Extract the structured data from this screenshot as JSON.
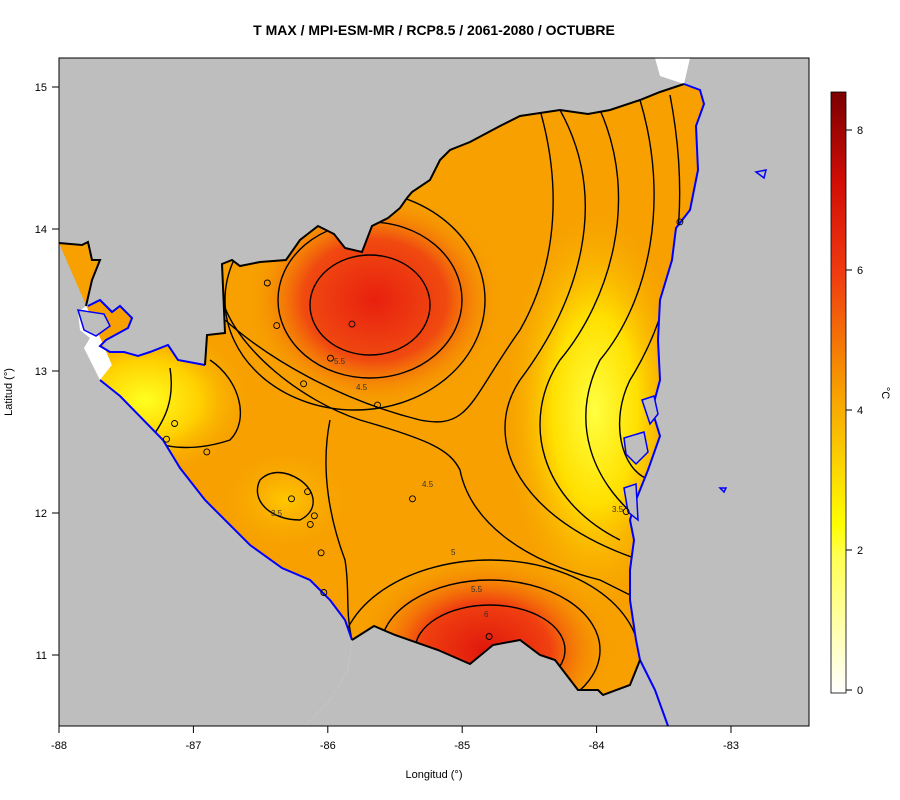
{
  "title": "T MAX / MPI-ESM-MR / RCP8.5 / 2061-2080 / OCTUBRE",
  "xlabel": "Longitud (°)",
  "ylabel": "Latitud (°)",
  "xticks": [
    "-88",
    "-87",
    "-86",
    "-85",
    "-84",
    "-83"
  ],
  "yticks": [
    "15",
    "14",
    "13",
    "12",
    "11"
  ],
  "colorbar": {
    "label": "°C",
    "ticks": [
      "8",
      "6",
      "4",
      "2",
      "0"
    ],
    "range": [
      -0.2,
      8.6
    ]
  },
  "contour_labels": [
    "5.5",
    "4.5",
    "4.5",
    "3.5",
    "5",
    "5.5",
    "6",
    "3.5"
  ],
  "colors": {
    "land_gray": "#bebebe",
    "coast_blue": "#0000ff",
    "contour": "#000000",
    "hot": "#e8200f",
    "warm": "#f7a000",
    "cool": "#ffff00"
  },
  "map_data": {
    "xlim": [
      -88,
      -82.4
    ],
    "ylim": [
      10.5,
      15.2
    ],
    "stations": [
      [
        -86.45,
        13.62
      ],
      [
        -86.38,
        13.32
      ],
      [
        -85.82,
        13.33
      ],
      [
        -85.98,
        13.09
      ],
      [
        -86.18,
        12.91
      ],
      [
        -85.63,
        12.76
      ],
      [
        -87.14,
        12.63
      ],
      [
        -87.2,
        12.52
      ],
      [
        -86.9,
        12.43
      ],
      [
        -86.15,
        12.15
      ],
      [
        -86.27,
        12.1
      ],
      [
        -86.1,
        11.98
      ],
      [
        -86.13,
        11.92
      ],
      [
        -86.05,
        11.72
      ],
      [
        -85.37,
        12.1
      ],
      [
        -86.03,
        11.44
      ],
      [
        -84.8,
        11.13
      ],
      [
        -83.78,
        12.01
      ],
      [
        -83.38,
        14.05
      ]
    ]
  }
}
